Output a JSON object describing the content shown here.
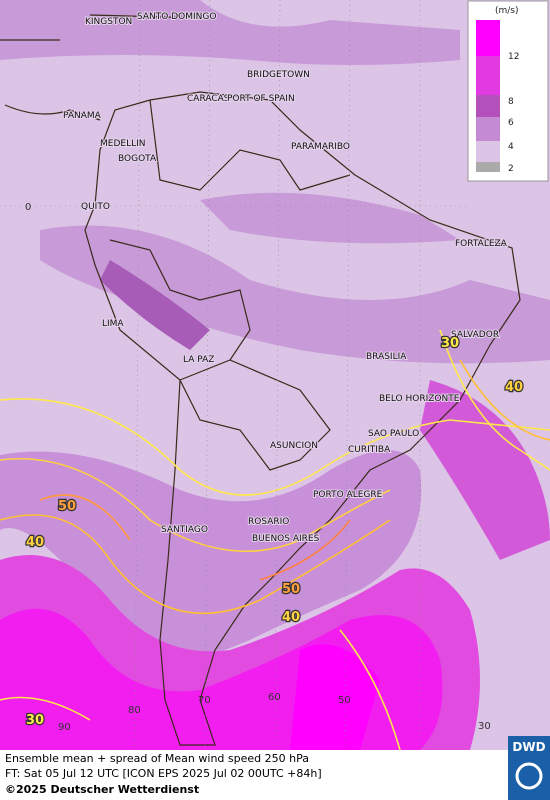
{
  "map": {
    "cities": [
      "KINGSTON",
      "SANTO DOMINGO",
      "BRIDGETOWN",
      "CARACAS",
      "PORT OF SPAIN",
      "PANAMA",
      "MEDELLIN",
      "BOGOTA",
      "PARAMARIBO",
      "QUITO",
      "FORTALEZA",
      "LIMA",
      "SALVADOR",
      "LA PAZ",
      "BRASILIA",
      "BELO HORIZONTE",
      "SAO PAULO",
      "ASUNCION",
      "CURITIBA",
      "PORTO ALEGRE",
      "SANTIAGO",
      "ROSARIO",
      "BUENOS AIRES"
    ],
    "contour_labels": [
      "30",
      "40",
      "50",
      "40",
      "50",
      "40",
      "30"
    ],
    "grid_labels": [
      "0",
      "90",
      "80",
      "70",
      "60",
      "50",
      "30"
    ]
  },
  "legend": {
    "unit": "(m/s)",
    "ticks": [
      "12",
      "8",
      "6",
      "4",
      "2"
    ]
  },
  "footer": {
    "line1": "Ensemble mean + spread of Mean wind speed 250 hPa",
    "line2": "FT: Sat 05 Jul 12 UTC [ICON EPS 2025 Jul 02 00UTC +84h]",
    "line3": "©2025 Deutscher Wetterdienst",
    "logo": "DWD"
  }
}
